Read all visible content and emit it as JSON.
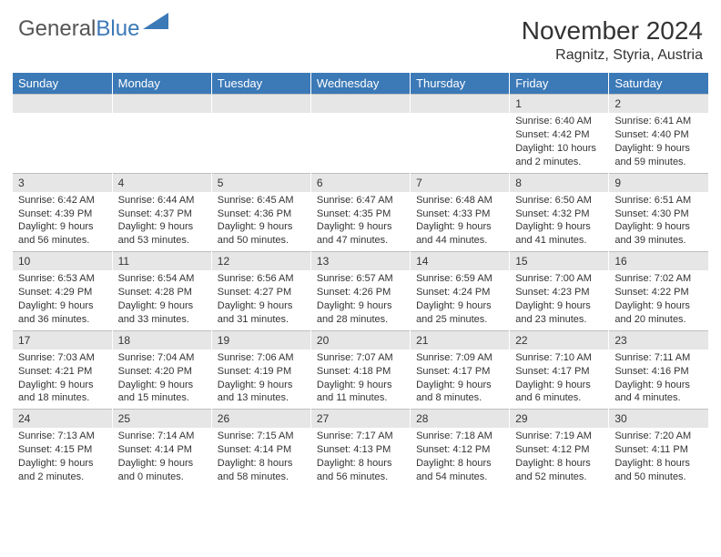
{
  "logo": {
    "text1": "General",
    "text2": "Blue"
  },
  "title": "November 2024",
  "subtitle": "Ragnitz, Styria, Austria",
  "colors": {
    "header_bg": "#3b79b7",
    "header_text": "#ffffff",
    "daynum_bg": "#e6e6e6",
    "daynum_border": "#bfbfbf",
    "page_bg": "#ffffff",
    "text": "#333333"
  },
  "daysOfWeek": [
    "Sunday",
    "Monday",
    "Tuesday",
    "Wednesday",
    "Thursday",
    "Friday",
    "Saturday"
  ],
  "weeks": [
    [
      {
        "day": "",
        "sunrise": "",
        "sunset": "",
        "daylight": ""
      },
      {
        "day": "",
        "sunrise": "",
        "sunset": "",
        "daylight": ""
      },
      {
        "day": "",
        "sunrise": "",
        "sunset": "",
        "daylight": ""
      },
      {
        "day": "",
        "sunrise": "",
        "sunset": "",
        "daylight": ""
      },
      {
        "day": "",
        "sunrise": "",
        "sunset": "",
        "daylight": ""
      },
      {
        "day": "1",
        "sunrise": "Sunrise: 6:40 AM",
        "sunset": "Sunset: 4:42 PM",
        "daylight": "Daylight: 10 hours and 2 minutes."
      },
      {
        "day": "2",
        "sunrise": "Sunrise: 6:41 AM",
        "sunset": "Sunset: 4:40 PM",
        "daylight": "Daylight: 9 hours and 59 minutes."
      }
    ],
    [
      {
        "day": "3",
        "sunrise": "Sunrise: 6:42 AM",
        "sunset": "Sunset: 4:39 PM",
        "daylight": "Daylight: 9 hours and 56 minutes."
      },
      {
        "day": "4",
        "sunrise": "Sunrise: 6:44 AM",
        "sunset": "Sunset: 4:37 PM",
        "daylight": "Daylight: 9 hours and 53 minutes."
      },
      {
        "day": "5",
        "sunrise": "Sunrise: 6:45 AM",
        "sunset": "Sunset: 4:36 PM",
        "daylight": "Daylight: 9 hours and 50 minutes."
      },
      {
        "day": "6",
        "sunrise": "Sunrise: 6:47 AM",
        "sunset": "Sunset: 4:35 PM",
        "daylight": "Daylight: 9 hours and 47 minutes."
      },
      {
        "day": "7",
        "sunrise": "Sunrise: 6:48 AM",
        "sunset": "Sunset: 4:33 PM",
        "daylight": "Daylight: 9 hours and 44 minutes."
      },
      {
        "day": "8",
        "sunrise": "Sunrise: 6:50 AM",
        "sunset": "Sunset: 4:32 PM",
        "daylight": "Daylight: 9 hours and 41 minutes."
      },
      {
        "day": "9",
        "sunrise": "Sunrise: 6:51 AM",
        "sunset": "Sunset: 4:30 PM",
        "daylight": "Daylight: 9 hours and 39 minutes."
      }
    ],
    [
      {
        "day": "10",
        "sunrise": "Sunrise: 6:53 AM",
        "sunset": "Sunset: 4:29 PM",
        "daylight": "Daylight: 9 hours and 36 minutes."
      },
      {
        "day": "11",
        "sunrise": "Sunrise: 6:54 AM",
        "sunset": "Sunset: 4:28 PM",
        "daylight": "Daylight: 9 hours and 33 minutes."
      },
      {
        "day": "12",
        "sunrise": "Sunrise: 6:56 AM",
        "sunset": "Sunset: 4:27 PM",
        "daylight": "Daylight: 9 hours and 31 minutes."
      },
      {
        "day": "13",
        "sunrise": "Sunrise: 6:57 AM",
        "sunset": "Sunset: 4:26 PM",
        "daylight": "Daylight: 9 hours and 28 minutes."
      },
      {
        "day": "14",
        "sunrise": "Sunrise: 6:59 AM",
        "sunset": "Sunset: 4:24 PM",
        "daylight": "Daylight: 9 hours and 25 minutes."
      },
      {
        "day": "15",
        "sunrise": "Sunrise: 7:00 AM",
        "sunset": "Sunset: 4:23 PM",
        "daylight": "Daylight: 9 hours and 23 minutes."
      },
      {
        "day": "16",
        "sunrise": "Sunrise: 7:02 AM",
        "sunset": "Sunset: 4:22 PM",
        "daylight": "Daylight: 9 hours and 20 minutes."
      }
    ],
    [
      {
        "day": "17",
        "sunrise": "Sunrise: 7:03 AM",
        "sunset": "Sunset: 4:21 PM",
        "daylight": "Daylight: 9 hours and 18 minutes."
      },
      {
        "day": "18",
        "sunrise": "Sunrise: 7:04 AM",
        "sunset": "Sunset: 4:20 PM",
        "daylight": "Daylight: 9 hours and 15 minutes."
      },
      {
        "day": "19",
        "sunrise": "Sunrise: 7:06 AM",
        "sunset": "Sunset: 4:19 PM",
        "daylight": "Daylight: 9 hours and 13 minutes."
      },
      {
        "day": "20",
        "sunrise": "Sunrise: 7:07 AM",
        "sunset": "Sunset: 4:18 PM",
        "daylight": "Daylight: 9 hours and 11 minutes."
      },
      {
        "day": "21",
        "sunrise": "Sunrise: 7:09 AM",
        "sunset": "Sunset: 4:17 PM",
        "daylight": "Daylight: 9 hours and 8 minutes."
      },
      {
        "day": "22",
        "sunrise": "Sunrise: 7:10 AM",
        "sunset": "Sunset: 4:17 PM",
        "daylight": "Daylight: 9 hours and 6 minutes."
      },
      {
        "day": "23",
        "sunrise": "Sunrise: 7:11 AM",
        "sunset": "Sunset: 4:16 PM",
        "daylight": "Daylight: 9 hours and 4 minutes."
      }
    ],
    [
      {
        "day": "24",
        "sunrise": "Sunrise: 7:13 AM",
        "sunset": "Sunset: 4:15 PM",
        "daylight": "Daylight: 9 hours and 2 minutes."
      },
      {
        "day": "25",
        "sunrise": "Sunrise: 7:14 AM",
        "sunset": "Sunset: 4:14 PM",
        "daylight": "Daylight: 9 hours and 0 minutes."
      },
      {
        "day": "26",
        "sunrise": "Sunrise: 7:15 AM",
        "sunset": "Sunset: 4:14 PM",
        "daylight": "Daylight: 8 hours and 58 minutes."
      },
      {
        "day": "27",
        "sunrise": "Sunrise: 7:17 AM",
        "sunset": "Sunset: 4:13 PM",
        "daylight": "Daylight: 8 hours and 56 minutes."
      },
      {
        "day": "28",
        "sunrise": "Sunrise: 7:18 AM",
        "sunset": "Sunset: 4:12 PM",
        "daylight": "Daylight: 8 hours and 54 minutes."
      },
      {
        "day": "29",
        "sunrise": "Sunrise: 7:19 AM",
        "sunset": "Sunset: 4:12 PM",
        "daylight": "Daylight: 8 hours and 52 minutes."
      },
      {
        "day": "30",
        "sunrise": "Sunrise: 7:20 AM",
        "sunset": "Sunset: 4:11 PM",
        "daylight": "Daylight: 8 hours and 50 minutes."
      }
    ]
  ]
}
